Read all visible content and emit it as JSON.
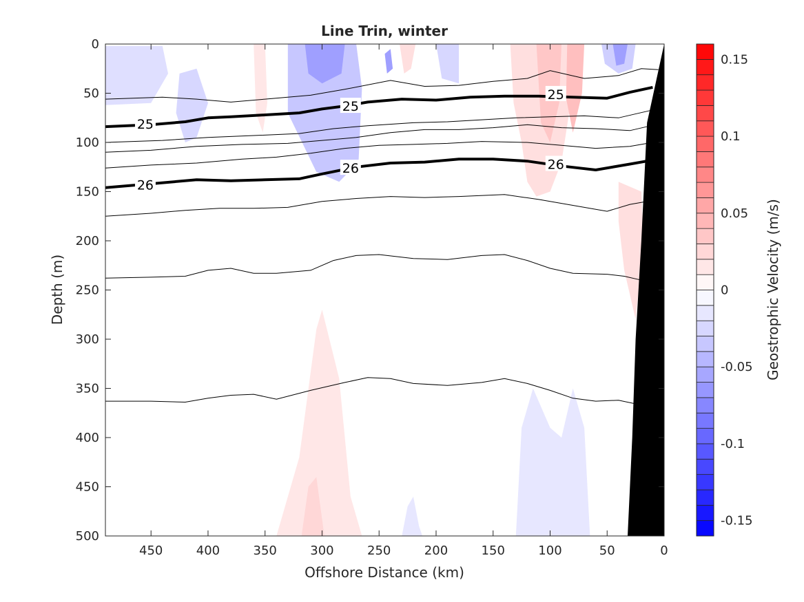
{
  "chart_data": {
    "type": "contour",
    "title": "Line Trin, winter",
    "xlabel": "Offshore Distance (km)",
    "ylabel": "Depth (m)",
    "colorbar_label": "Geostrophic Velocity (m/s)",
    "xlim": [
      490,
      0
    ],
    "ylim": [
      500,
      0
    ],
    "x_ticks": [
      450,
      400,
      350,
      300,
      250,
      200,
      150,
      100,
      50,
      0
    ],
    "y_ticks": [
      0,
      50,
      100,
      150,
      200,
      250,
      300,
      350,
      400,
      450,
      500
    ],
    "colorbar_ticks": [
      {
        "value": 0.15,
        "label": "0.15"
      },
      {
        "value": 0.1,
        "label": "0.1"
      },
      {
        "value": 0.05,
        "label": "0.05"
      },
      {
        "value": 0,
        "label": "0"
      },
      {
        "value": -0.05,
        "label": "-0.05"
      },
      {
        "value": -0.1,
        "label": "-0.1"
      },
      {
        "value": -0.15,
        "label": "-0.15"
      }
    ],
    "colorbar_range": [
      -0.16,
      0.16
    ],
    "colorbar_levels": 32,
    "colormap": {
      "negative": "#0000ff",
      "zero": "#ffffff",
      "positive": "#ff0000"
    },
    "bathymetry_color": "#000000",
    "labeled_isopycnals": [
      {
        "value": 25,
        "points": [
          [
            490,
            84
          ],
          [
            450,
            82
          ],
          [
            420,
            79
          ],
          [
            400,
            75
          ],
          [
            380,
            74
          ],
          [
            350,
            72
          ],
          [
            320,
            70
          ],
          [
            300,
            66
          ],
          [
            280,
            63
          ],
          [
            260,
            59
          ],
          [
            230,
            56
          ],
          [
            200,
            57
          ],
          [
            170,
            54
          ],
          [
            140,
            53
          ],
          [
            110,
            53
          ],
          [
            80,
            54
          ],
          [
            50,
            55
          ],
          [
            30,
            49
          ],
          [
            10,
            44
          ]
        ],
        "labels": [
          {
            "text": "25",
            "x": 455,
            "y": 81
          },
          {
            "text": "25",
            "x": 275,
            "y": 63
          },
          {
            "text": "25",
            "x": 95,
            "y": 51
          }
        ]
      },
      {
        "value": 26,
        "points": [
          [
            490,
            146
          ],
          [
            450,
            142
          ],
          [
            410,
            138
          ],
          [
            380,
            139
          ],
          [
            350,
            138
          ],
          [
            320,
            137
          ],
          [
            300,
            132
          ],
          [
            270,
            125
          ],
          [
            240,
            121
          ],
          [
            210,
            120
          ],
          [
            180,
            117
          ],
          [
            150,
            117
          ],
          [
            120,
            119
          ],
          [
            90,
            124
          ],
          [
            60,
            128
          ],
          [
            30,
            122
          ],
          [
            10,
            118
          ]
        ],
        "labels": [
          {
            "text": "26",
            "x": 455,
            "y": 143
          },
          {
            "text": "26",
            "x": 275,
            "y": 126
          },
          {
            "text": "26",
            "x": 95,
            "y": 122
          }
        ]
      }
    ],
    "isopycnals": [
      [
        [
          490,
          56
        ],
        [
          440,
          54
        ],
        [
          410,
          56
        ],
        [
          380,
          59
        ],
        [
          350,
          56
        ],
        [
          310,
          52
        ],
        [
          280,
          46
        ],
        [
          240,
          37
        ],
        [
          210,
          43
        ],
        [
          180,
          42
        ],
        [
          150,
          38
        ],
        [
          120,
          35
        ],
        [
          100,
          27
        ],
        [
          70,
          35
        ],
        [
          40,
          32
        ],
        [
          20,
          25
        ],
        [
          5,
          26
        ]
      ],
      [
        [
          490,
          100
        ],
        [
          440,
          98
        ],
        [
          400,
          95
        ],
        [
          360,
          93
        ],
        [
          320,
          91
        ],
        [
          290,
          86
        ],
        [
          260,
          83
        ],
        [
          220,
          80
        ],
        [
          190,
          79
        ],
        [
          160,
          77
        ],
        [
          130,
          75
        ],
        [
          100,
          74
        ],
        [
          70,
          73
        ],
        [
          40,
          75
        ],
        [
          10,
          67
        ]
      ],
      [
        [
          490,
          110
        ],
        [
          450,
          108
        ],
        [
          410,
          104
        ],
        [
          370,
          102
        ],
        [
          330,
          101
        ],
        [
          300,
          98
        ],
        [
          270,
          95
        ],
        [
          240,
          90
        ],
        [
          210,
          87
        ],
        [
          180,
          87
        ],
        [
          150,
          85
        ],
        [
          120,
          82
        ],
        [
          90,
          85
        ],
        [
          60,
          86
        ],
        [
          30,
          88
        ],
        [
          8,
          82
        ]
      ],
      [
        [
          490,
          126
        ],
        [
          450,
          123
        ],
        [
          410,
          121
        ],
        [
          370,
          117
        ],
        [
          340,
          115
        ],
        [
          310,
          111
        ],
        [
          280,
          106
        ],
        [
          250,
          103
        ],
        [
          220,
          102
        ],
        [
          190,
          101
        ],
        [
          160,
          99
        ],
        [
          120,
          100
        ],
        [
          90,
          103
        ],
        [
          60,
          106
        ],
        [
          30,
          104
        ],
        [
          10,
          100
        ]
      ],
      [
        [
          490,
          175
        ],
        [
          450,
          172
        ],
        [
          420,
          169
        ],
        [
          390,
          167
        ],
        [
          360,
          167
        ],
        [
          330,
          166
        ],
        [
          300,
          160
        ],
        [
          270,
          157
        ],
        [
          240,
          155
        ],
        [
          210,
          156
        ],
        [
          180,
          155
        ],
        [
          140,
          153
        ],
        [
          110,
          158
        ],
        [
          80,
          164
        ],
        [
          50,
          170
        ],
        [
          30,
          163
        ],
        [
          15,
          160
        ]
      ],
      [
        [
          490,
          238
        ],
        [
          450,
          237
        ],
        [
          420,
          236
        ],
        [
          400,
          230
        ],
        [
          380,
          228
        ],
        [
          360,
          233
        ],
        [
          340,
          233
        ],
        [
          310,
          230
        ],
        [
          290,
          220
        ],
        [
          270,
          215
        ],
        [
          250,
          214
        ],
        [
          220,
          218
        ],
        [
          190,
          219
        ],
        [
          160,
          215
        ],
        [
          140,
          214
        ],
        [
          120,
          220
        ],
        [
          100,
          228
        ],
        [
          80,
          233
        ],
        [
          50,
          234
        ],
        [
          35,
          236
        ],
        [
          20,
          240
        ]
      ],
      [
        [
          490,
          363
        ],
        [
          450,
          363
        ],
        [
          420,
          364
        ],
        [
          400,
          360
        ],
        [
          380,
          357
        ],
        [
          360,
          356
        ],
        [
          340,
          361
        ],
        [
          310,
          352
        ],
        [
          280,
          344
        ],
        [
          260,
          339
        ],
        [
          240,
          340
        ],
        [
          220,
          345
        ],
        [
          190,
          347
        ],
        [
          160,
          344
        ],
        [
          140,
          340
        ],
        [
          120,
          345
        ],
        [
          100,
          352
        ],
        [
          80,
          360
        ],
        [
          60,
          363
        ],
        [
          40,
          362
        ],
        [
          20,
          367
        ]
      ]
    ],
    "velocity_patches": [
      {
        "value": -0.02,
        "points": [
          [
            490,
            2
          ],
          [
            440,
            2
          ],
          [
            435,
            30
          ],
          [
            450,
            60
          ],
          [
            490,
            62
          ]
        ]
      },
      {
        "value": -0.025,
        "points": [
          [
            425,
            30
          ],
          [
            410,
            25
          ],
          [
            400,
            60
          ],
          [
            410,
            95
          ],
          [
            420,
            100
          ],
          [
            428,
            70
          ]
        ]
      },
      {
        "value": 0.015,
        "points": [
          [
            360,
            0
          ],
          [
            350,
            0
          ],
          [
            348,
            60
          ],
          [
            352,
            90
          ],
          [
            358,
            70
          ]
        ]
      },
      {
        "value": -0.035,
        "points": [
          [
            330,
            0
          ],
          [
            270,
            0
          ],
          [
            265,
            45
          ],
          [
            268,
            120
          ],
          [
            285,
            140
          ],
          [
            305,
            130
          ],
          [
            330,
            70
          ]
        ]
      },
      {
        "value": -0.06,
        "points": [
          [
            315,
            0
          ],
          [
            280,
            0
          ],
          [
            283,
            30
          ],
          [
            300,
            40
          ],
          [
            312,
            30
          ]
        ]
      },
      {
        "value": -0.06,
        "points": [
          [
            245,
            10
          ],
          [
            240,
            5
          ],
          [
            238,
            25
          ],
          [
            243,
            30
          ]
        ]
      },
      {
        "value": 0.02,
        "points": [
          [
            232,
            0
          ],
          [
            218,
            0
          ],
          [
            222,
            25
          ],
          [
            228,
            30
          ]
        ]
      },
      {
        "value": -0.025,
        "points": [
          [
            200,
            0
          ],
          [
            180,
            0
          ],
          [
            180,
            40
          ],
          [
            195,
            35
          ]
        ]
      },
      {
        "value": 0.02,
        "points": [
          [
            135,
            0
          ],
          [
            85,
            0
          ],
          [
            82,
            60
          ],
          [
            90,
            120
          ],
          [
            100,
            150
          ],
          [
            112,
            155
          ],
          [
            120,
            140
          ],
          [
            125,
            100
          ],
          [
            132,
            60
          ]
        ]
      },
      {
        "value": 0.035,
        "points": [
          [
            112,
            0
          ],
          [
            90,
            0
          ],
          [
            92,
            60
          ],
          [
            100,
            100
          ],
          [
            108,
            80
          ]
        ]
      },
      {
        "value": 0.04,
        "points": [
          [
            85,
            0
          ],
          [
            70,
            0
          ],
          [
            72,
            50
          ],
          [
            80,
            90
          ],
          [
            86,
            55
          ]
        ]
      },
      {
        "value": -0.03,
        "points": [
          [
            55,
            0
          ],
          [
            25,
            0
          ],
          [
            28,
            25
          ],
          [
            40,
            30
          ],
          [
            52,
            20
          ]
        ]
      },
      {
        "value": -0.06,
        "points": [
          [
            45,
            0
          ],
          [
            32,
            0
          ],
          [
            35,
            20
          ],
          [
            42,
            22
          ]
        ]
      },
      {
        "value": 0.02,
        "points": [
          [
            40,
            140
          ],
          [
            20,
            150
          ],
          [
            18,
            200
          ],
          [
            25,
            280
          ],
          [
            35,
            230
          ],
          [
            40,
            180
          ]
        ]
      },
      {
        "value": 0.015,
        "points": [
          [
            340,
            500
          ],
          [
            320,
            420
          ],
          [
            305,
            290
          ],
          [
            300,
            270
          ],
          [
            285,
            340
          ],
          [
            275,
            460
          ],
          [
            265,
            500
          ]
        ]
      },
      {
        "value": 0.025,
        "points": [
          [
            318,
            500
          ],
          [
            312,
            450
          ],
          [
            305,
            440
          ],
          [
            298,
            500
          ]
        ]
      },
      {
        "value": -0.015,
        "points": [
          [
            130,
            500
          ],
          [
            125,
            390
          ],
          [
            115,
            350
          ],
          [
            100,
            390
          ],
          [
            90,
            400
          ],
          [
            80,
            350
          ],
          [
            70,
            390
          ],
          [
            65,
            500
          ]
        ]
      },
      {
        "value": -0.015,
        "points": [
          [
            230,
            500
          ],
          [
            225,
            470
          ],
          [
            220,
            460
          ],
          [
            215,
            490
          ],
          [
            212,
            500
          ]
        ]
      }
    ],
    "bathymetry": [
      [
        0,
        0
      ],
      [
        15,
        80
      ],
      [
        20,
        200
      ],
      [
        25,
        300
      ],
      [
        28,
        400
      ],
      [
        32,
        500
      ],
      [
        0,
        500
      ]
    ]
  }
}
